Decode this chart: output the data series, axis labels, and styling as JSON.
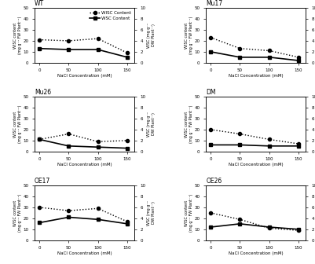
{
  "x": [
    0,
    50,
    100,
    150
  ],
  "panels": [
    {
      "title": "WT",
      "wisc": [
        21,
        20,
        22,
        9
      ],
      "wsc": [
        13,
        12,
        12,
        5
      ],
      "show_legend": true
    },
    {
      "title": "Mu17",
      "wisc": [
        23,
        13,
        11,
        5
      ],
      "wsc": [
        10,
        5,
        5,
        2
      ],
      "show_legend": false
    },
    {
      "title": "Mu26",
      "wisc": [
        11,
        16,
        9,
        10
      ],
      "wsc": [
        11,
        5,
        4,
        3
      ],
      "show_legend": false
    },
    {
      "title": "DM",
      "wisc": [
        20,
        16,
        11,
        7
      ],
      "wsc": [
        6,
        6,
        5,
        5
      ],
      "show_legend": false
    },
    {
      "title": "OE17",
      "wisc": [
        30,
        27,
        29,
        17
      ],
      "wsc": [
        16,
        21,
        19,
        15
      ],
      "show_legend": false
    },
    {
      "title": "OE26",
      "wisc": [
        25,
        19,
        11,
        9
      ],
      "wsc": [
        12,
        15,
        12,
        10
      ],
      "show_legend": false
    }
  ],
  "xlabel": "NaCl Concentration (mM)",
  "ylabel_left": "WISC content (mg g⁻¹ FW Plant⁻¹)",
  "ylabel_right": "WSC (mg g⁻¹ DW Plant⁻¹)",
  "legend_wisc": "WISC Content",
  "legend_wsc": "WSC Content",
  "line_color": "black",
  "marker_wisc": "o",
  "marker_wsc": "s",
  "ylim_left": [
    0,
    50
  ],
  "ylim_right": [
    0,
    10
  ],
  "yticks_left": [
    0,
    10,
    20,
    30,
    40,
    50
  ],
  "yticks_right": [
    0,
    2,
    4,
    6,
    8,
    10
  ]
}
